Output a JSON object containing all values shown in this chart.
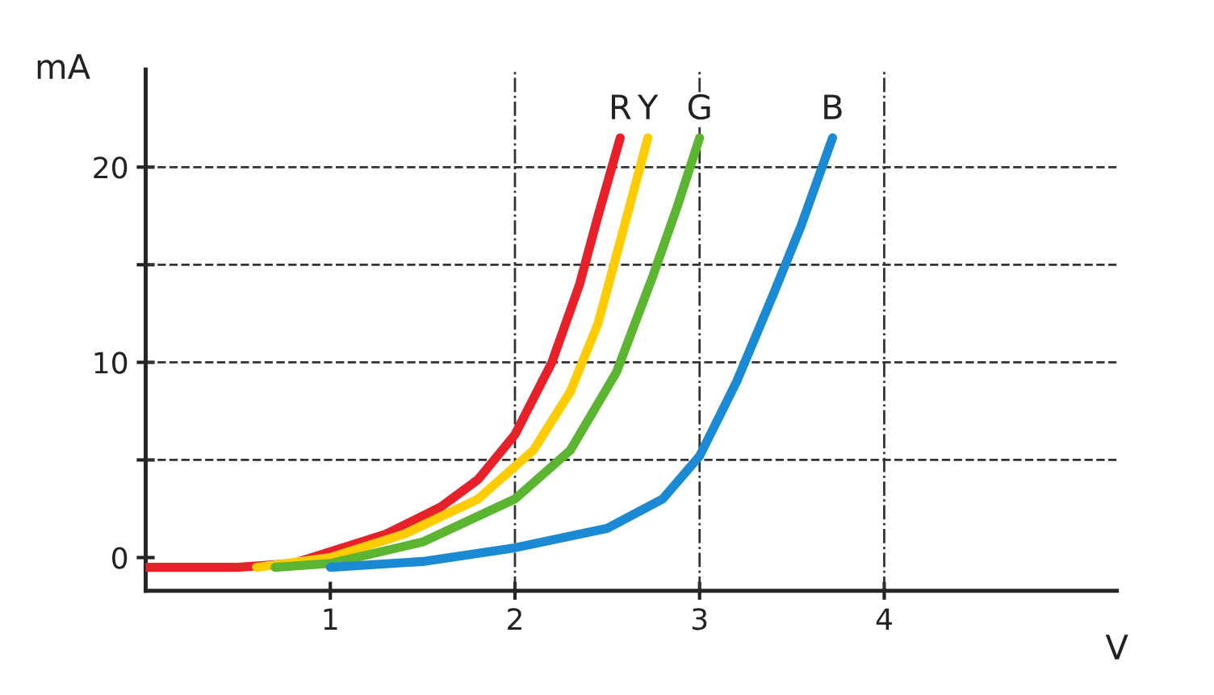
{
  "chart_data": {
    "type": "line",
    "xlabel": "V",
    "ylabel": "mA",
    "xlim": [
      0,
      5.26
    ],
    "ylim": [
      -1.7,
      25
    ],
    "xticks": [
      1,
      2,
      3,
      4
    ],
    "yticks": [
      0,
      {
        "value": 5,
        "label": null
      },
      10,
      {
        "value": 15,
        "label": null
      },
      20
    ],
    "series": [
      {
        "name": "R",
        "color": "#e8202a",
        "x": [
          0,
          0.5,
          0.8,
          1.0,
          1.3,
          1.6,
          1.8,
          2.0,
          2.2,
          2.35,
          2.45,
          2.57
        ],
        "values": [
          -0.5,
          -0.5,
          -0.3,
          0.3,
          1.2,
          2.6,
          4,
          6.3,
          10,
          14,
          17.5,
          21.5
        ]
      },
      {
        "name": "Y",
        "color": "#ffcc00",
        "x": [
          0.6,
          1.0,
          1.4,
          1.8,
          2.1,
          2.3,
          2.45,
          2.55,
          2.72
        ],
        "values": [
          -0.5,
          0,
          1.2,
          3,
          5.5,
          8.5,
          12,
          15.5,
          21.5
        ]
      },
      {
        "name": "G",
        "color": "#5cb531",
        "x": [
          0.7,
          1.0,
          1.5,
          2.0,
          2.3,
          2.55,
          2.75,
          2.88,
          3.0
        ],
        "values": [
          -0.5,
          -0.3,
          0.8,
          3,
          5.5,
          9.5,
          14.5,
          18,
          21.5
        ]
      },
      {
        "name": "B",
        "color": "#1a8ad4",
        "x": [
          1.0,
          1.5,
          2.0,
          2.5,
          2.8,
          3.0,
          3.2,
          3.4,
          3.55,
          3.72
        ],
        "values": [
          -0.5,
          -0.2,
          0.5,
          1.5,
          3,
          5.2,
          9,
          13.5,
          17,
          21.5
        ]
      }
    ],
    "ref_lines": [
      {
        "axis": "y",
        "value": 5,
        "line_style": "dashed",
        "color": "#333333"
      },
      {
        "axis": "y",
        "value": 10,
        "line_style": "dashed",
        "color": "#333333"
      },
      {
        "axis": "y",
        "value": 15,
        "line_style": "dashed",
        "color": "#333333"
      },
      {
        "axis": "y",
        "value": 20,
        "line_style": "dashed",
        "color": "#333333"
      },
      {
        "axis": "x",
        "value": 2,
        "line_style": "dashdot",
        "color": "#333333"
      },
      {
        "axis": "x",
        "value": 3,
        "line_style": "dashdot",
        "color": "#333333"
      },
      {
        "axis": "x",
        "value": 4,
        "line_style": "dashdot",
        "color": "#333333"
      }
    ],
    "grid": false,
    "legend": false,
    "marker": "none",
    "line_style": "solid"
  }
}
